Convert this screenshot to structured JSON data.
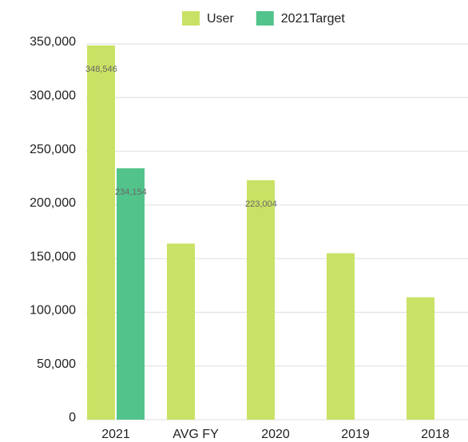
{
  "chart_data": {
    "type": "bar",
    "categories": [
      "2021",
      "AVG FY",
      "2020",
      "2019",
      "2018"
    ],
    "series": [
      {
        "name": "User",
        "color": "#c9e265",
        "values": [
          348546,
          164000,
          223004,
          155000,
          114000
        ],
        "value_labels": [
          "348,546",
          null,
          "223,004",
          null,
          null
        ]
      },
      {
        "name": "2021Target",
        "color": "#52c48b",
        "values": [
          234154,
          null,
          null,
          null,
          null
        ],
        "value_labels": [
          "234,154",
          null,
          null,
          null,
          null
        ]
      }
    ],
    "ylim": [
      0,
      350000
    ],
    "yticks": [
      0,
      {
        "value": 50000,
        "label": "50,000"
      },
      {
        "value": 100000,
        "label": "100,000"
      },
      {
        "value": 150000,
        "label": "150,000"
      },
      {
        "value": 200000,
        "label": "200,000"
      },
      {
        "value": 250000,
        "label": "250,000"
      },
      {
        "value": 300000,
        "label": "300,000"
      },
      {
        "value": 350000,
        "label": "350,000"
      }
    ],
    "grid": true,
    "legend": "top"
  }
}
